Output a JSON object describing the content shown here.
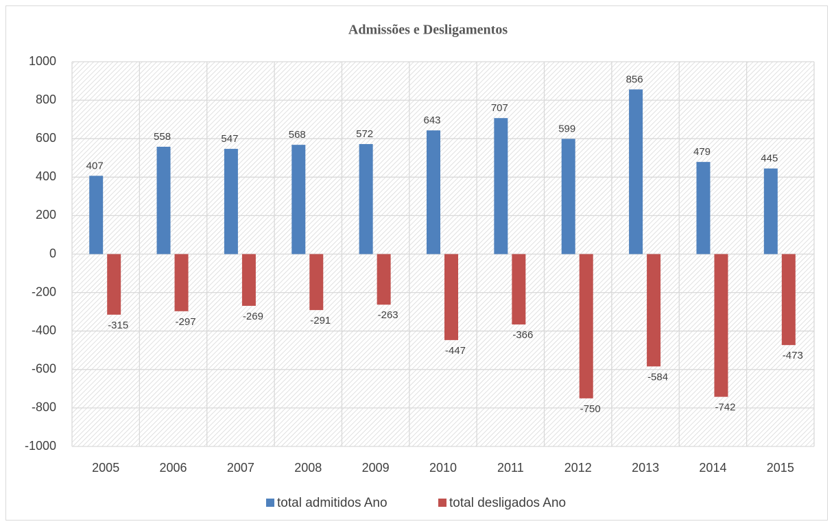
{
  "chart_data": {
    "type": "bar",
    "title": "Admissões e Desligamentos",
    "categories": [
      "2005",
      "2006",
      "2007",
      "2008",
      "2009",
      "2010",
      "2011",
      "2012",
      "2013",
      "2014",
      "2015"
    ],
    "series": [
      {
        "name": "total admitidos Ano",
        "color": "#4f81bd",
        "values": [
          407,
          558,
          547,
          568,
          572,
          643,
          707,
          599,
          856,
          479,
          445
        ]
      },
      {
        "name": "total desligados Ano",
        "color": "#c0504d",
        "values": [
          -315,
          -297,
          -269,
          -291,
          -263,
          -447,
          -366,
          -750,
          -584,
          -742,
          -473
        ]
      }
    ],
    "ylim": [
      -1000,
      1000
    ],
    "yticks": [
      -1000,
      -800,
      -600,
      -400,
      -200,
      0,
      200,
      400,
      600,
      800,
      1000
    ],
    "grid": true,
    "legend": "bottom"
  }
}
